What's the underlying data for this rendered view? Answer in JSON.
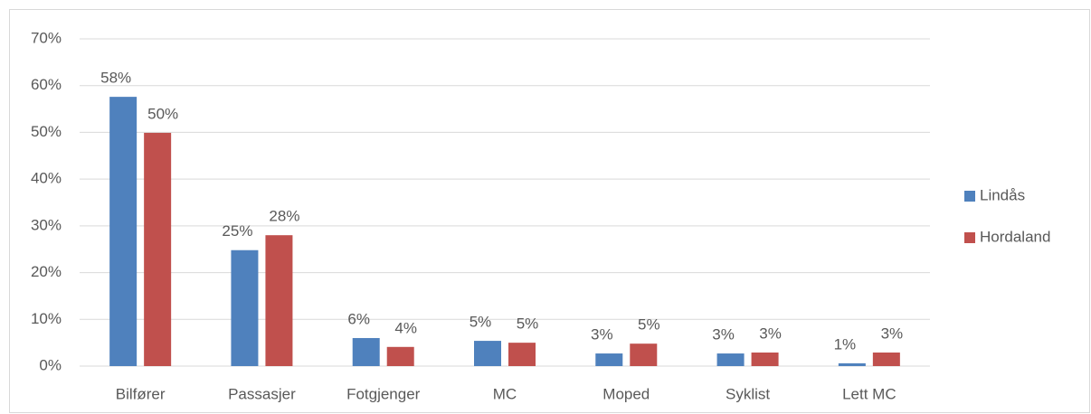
{
  "chart_data": {
    "type": "bar",
    "categories": [
      "Bilfører",
      "Passasjer",
      "Fotgjenger",
      "MC",
      "Moped",
      "Syklist",
      "Lett MC"
    ],
    "series": [
      {
        "name": "Lindås",
        "color": "#4f81bd",
        "values": [
          57.6,
          24.8,
          6.0,
          5.4,
          2.7,
          2.7,
          0.6
        ],
        "value_labels": [
          "58%",
          "25%",
          "6%",
          "5%",
          "3%",
          "3%",
          "1%"
        ]
      },
      {
        "name": "Hordaland",
        "color": "#c0504d",
        "values": [
          49.9,
          28.0,
          4.1,
          5.0,
          4.8,
          2.9,
          2.9
        ],
        "value_labels": [
          "50%",
          "28%",
          "4%",
          "5%",
          "5%",
          "3%",
          "3%"
        ]
      }
    ],
    "ylim": [
      0,
      70
    ],
    "yticks": [
      {
        "value": 0,
        "label": "0%"
      },
      {
        "value": 10,
        "label": "10%"
      },
      {
        "value": 20,
        "label": "20%"
      },
      {
        "value": 30,
        "label": "30%"
      },
      {
        "value": 40,
        "label": "40%"
      },
      {
        "value": 50,
        "label": "50%"
      },
      {
        "value": 60,
        "label": "60%"
      },
      {
        "value": 70,
        "label": "70%"
      }
    ],
    "grid": true,
    "legend": "right"
  }
}
